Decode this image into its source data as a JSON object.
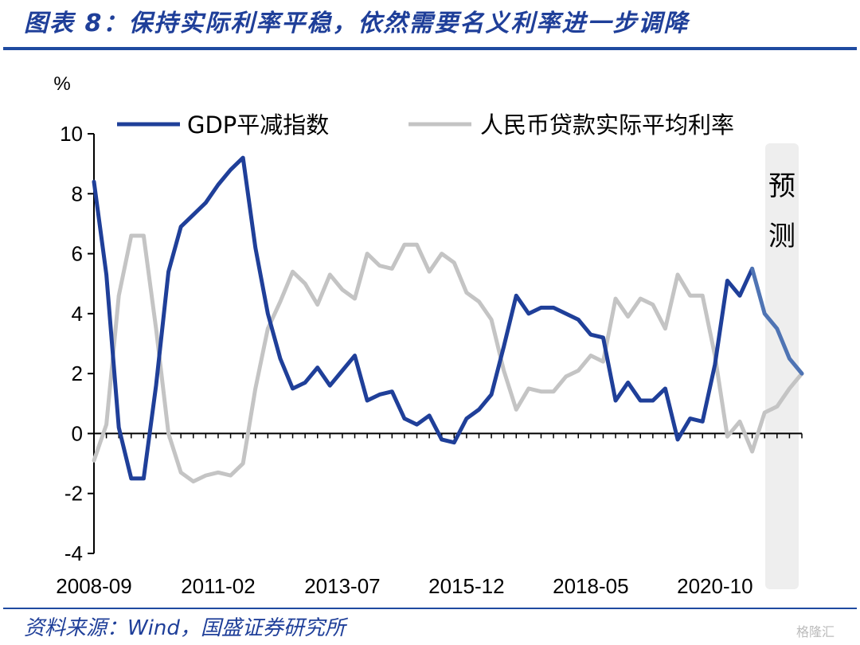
{
  "title": "图表 8：保持实际利率平稳，依然需要名义利率进一步调降",
  "source": "资料来源：Wind，国盛证券研究所",
  "watermark": "格隆汇",
  "chart_data": {
    "type": "line",
    "ylabel": "%",
    "ylim": [
      -4,
      10
    ],
    "yticks": [
      -4,
      -2,
      0,
      2,
      4,
      6,
      8,
      10
    ],
    "x_tick_labels": [
      "2008-09",
      "2011-02",
      "2013-07",
      "2015-12",
      "2018-05",
      "2020-10"
    ],
    "legend_position": "top",
    "forecast_label": "预测",
    "colors": {
      "deflator": "#1f3f99",
      "deflator_forecast": "#4f74b4",
      "real_rate": "#c4c4c4",
      "forecast_band": "#eeeeee"
    },
    "period": "quarterly",
    "x": [
      "2008Q3",
      "2008Q4",
      "2009Q1",
      "2009Q2",
      "2009Q3",
      "2009Q4",
      "2010Q1",
      "2010Q2",
      "2010Q3",
      "2010Q4",
      "2011Q1",
      "2011Q2",
      "2011Q3",
      "2011Q4",
      "2012Q1",
      "2012Q2",
      "2012Q3",
      "2012Q4",
      "2013Q1",
      "2013Q2",
      "2013Q3",
      "2013Q4",
      "2014Q1",
      "2014Q2",
      "2014Q3",
      "2014Q4",
      "2015Q1",
      "2015Q2",
      "2015Q3",
      "2015Q4",
      "2016Q1",
      "2016Q2",
      "2016Q3",
      "2016Q4",
      "2017Q1",
      "2017Q2",
      "2017Q3",
      "2017Q4",
      "2018Q1",
      "2018Q2",
      "2018Q3",
      "2018Q4",
      "2019Q1",
      "2019Q2",
      "2019Q3",
      "2019Q4",
      "2020Q1",
      "2020Q2",
      "2020Q3",
      "2020Q4",
      "2021Q1",
      "2021Q2",
      "2021Q3",
      "2021Q4",
      "2022Q1",
      "2022Q2",
      "2022Q3",
      "2022Q4"
    ],
    "forecast_start_index": 53,
    "series": [
      {
        "name": "GDP平减指数",
        "values": [
          8.4,
          5.3,
          0.2,
          -1.5,
          -1.5,
          1.6,
          5.4,
          6.9,
          7.3,
          7.7,
          8.3,
          8.8,
          9.2,
          6.2,
          4.0,
          2.5,
          1.5,
          1.7,
          2.2,
          1.6,
          2.1,
          2.6,
          1.1,
          1.3,
          1.4,
          0.5,
          0.3,
          0.6,
          -0.2,
          -0.3,
          0.5,
          0.8,
          1.3,
          2.9,
          4.6,
          4.0,
          4.2,
          4.2,
          4.0,
          3.8,
          3.3,
          3.2,
          1.1,
          1.7,
          1.1,
          1.1,
          1.5,
          -0.2,
          0.5,
          0.4,
          2.3,
          5.1,
          4.6,
          5.5,
          4.0,
          3.5,
          2.5,
          2.0
        ]
      },
      {
        "name": "人民币贷款实际平均利率",
        "values": [
          -0.9,
          0.3,
          4.6,
          6.6,
          6.6,
          3.5,
          0.0,
          -1.3,
          -1.6,
          -1.4,
          -1.3,
          -1.4,
          -1.0,
          1.5,
          3.5,
          4.4,
          5.4,
          5.0,
          4.3,
          5.3,
          4.8,
          4.5,
          6.0,
          5.6,
          5.5,
          6.3,
          6.3,
          5.4,
          6.0,
          5.7,
          4.7,
          4.4,
          3.8,
          2.1,
          0.8,
          1.5,
          1.4,
          1.4,
          1.9,
          2.1,
          2.6,
          2.4,
          4.5,
          3.9,
          4.5,
          4.3,
          3.5,
          5.3,
          4.6,
          4.6,
          2.6,
          -0.1,
          0.4,
          -0.6,
          0.7,
          0.9,
          1.5,
          2.0
        ]
      }
    ]
  }
}
